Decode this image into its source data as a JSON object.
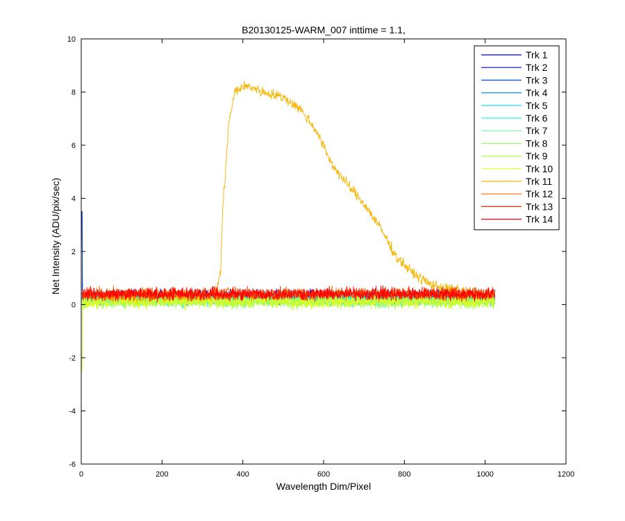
{
  "chart_data": {
    "type": "line",
    "title": "B20130125-WARM_007 inttime = 1.1,",
    "xlabel": "Wavelength Dim/Pixel",
    "ylabel": "Net Intensity (ADU/pix/sec)",
    "xlim": [
      0,
      1200
    ],
    "ylim": [
      -6,
      10
    ],
    "x_ticks": [
      0,
      200,
      400,
      600,
      800,
      1000,
      1200
    ],
    "y_ticks": [
      -6,
      -4,
      -2,
      0,
      2,
      4,
      6,
      8,
      10
    ],
    "x_tick_labels": [
      "0",
      "200",
      "400",
      "600",
      "800",
      "1000",
      "1200"
    ],
    "y_tick_labels": [
      "-6",
      "-4",
      "-2",
      "0",
      "2",
      "4",
      "6",
      "8",
      "10"
    ],
    "grid": false,
    "legend_position": "top-right",
    "x_range": [
      1,
      1024
    ],
    "series": [
      {
        "name": "Trk 1",
        "color": "#0000ae",
        "baseline": 0.3,
        "noise": 0.3
      },
      {
        "name": "Trk 2",
        "color": "#0000e0",
        "baseline": 0.3,
        "noise": 0.3
      },
      {
        "name": "Trk 3",
        "color": "#0049ff",
        "baseline": 0.25,
        "noise": 0.3
      },
      {
        "name": "Trk 4",
        "color": "#0092ff",
        "baseline": 0.25,
        "noise": 0.3
      },
      {
        "name": "Trk 5",
        "color": "#00dbff",
        "baseline": 0.2,
        "noise": 0.3
      },
      {
        "name": "Trk 6",
        "color": "#24ffdb",
        "baseline": 0.2,
        "noise": 0.3
      },
      {
        "name": "Trk 7",
        "color": "#6dff92",
        "baseline": 0.15,
        "noise": 0.3
      },
      {
        "name": "Trk 8",
        "color": "#92ff6d",
        "baseline": 0.15,
        "noise": 0.3
      },
      {
        "name": "Trk 9",
        "color": "#b6ff49",
        "baseline": 0.1,
        "noise": 0.3
      },
      {
        "name": "Trk 10",
        "color": "#dbff24",
        "baseline": 0.1,
        "noise": 0.3
      },
      {
        "name": "Trk 11",
        "color": "#f5b400",
        "baseline": 0.35,
        "noise": 0.25,
        "profile": {
          "x": [
            1,
            330,
            345,
            350,
            365,
            380,
            400,
            420,
            450,
            500,
            540,
            580,
            620,
            660,
            700,
            740,
            780,
            820,
            860,
            900,
            1000,
            1024
          ],
          "y": [
            0.3,
            0.3,
            1.2,
            3.5,
            6.8,
            8.0,
            8.2,
            8.2,
            8.0,
            7.8,
            7.4,
            6.6,
            5.3,
            4.5,
            3.8,
            2.9,
            1.8,
            1.2,
            0.8,
            0.6,
            0.4,
            0.4
          ]
        }
      },
      {
        "name": "Trk 12",
        "color": "#ff6d00",
        "baseline": 0.4,
        "noise": 0.3
      },
      {
        "name": "Trk 13",
        "color": "#ff2400",
        "baseline": 0.4,
        "noise": 0.3
      },
      {
        "name": "Trk 14",
        "color": "#ff0000",
        "baseline": 0.4,
        "noise": 0.3
      }
    ]
  }
}
